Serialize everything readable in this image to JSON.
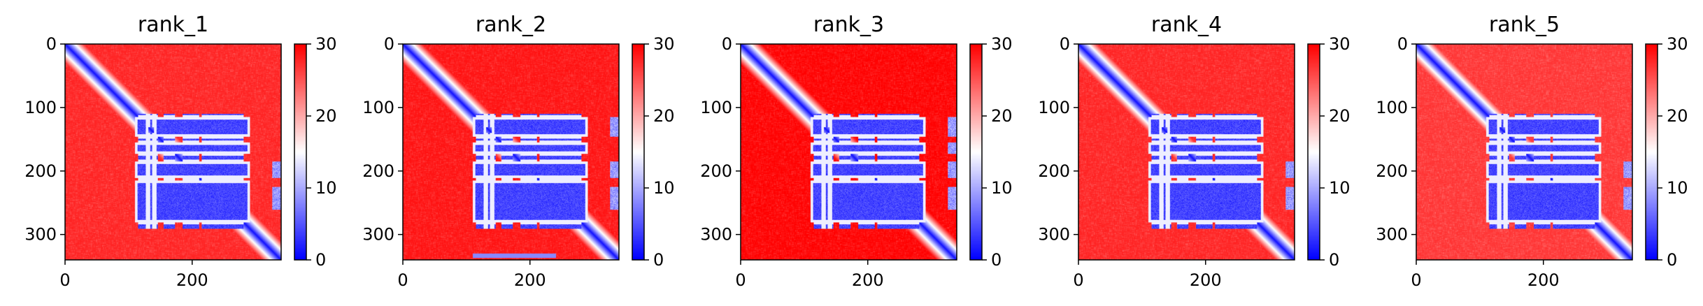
{
  "figure": {
    "colormap": [
      "#0000ff",
      "#ffffff",
      "#ff0000"
    ],
    "frame_color": "#000000"
  },
  "chart_data": [
    {
      "type": "heatmap",
      "title": "rank_1",
      "n": 340,
      "xlim": [
        0,
        340
      ],
      "ylim": [
        340,
        0
      ],
      "xticks": [
        0,
        200
      ],
      "yticks": [
        0,
        100,
        200,
        300
      ],
      "colorbar": {
        "min": 0,
        "max": 30,
        "ticks": [
          0,
          10,
          20,
          30
        ]
      },
      "structure": {
        "diagonal_band": true,
        "block_rows": [
          [
            115,
            145
          ],
          [
            155,
            172
          ],
          [
            185,
            210
          ],
          [
            215,
            280
          ]
        ],
        "block_cols": [
          [
            110,
            130
          ],
          [
            140,
            290
          ]
        ],
        "edge_feature_rows": [
          [
            185,
            210
          ],
          [
            225,
            260
          ]
        ],
        "bottom_strip": null,
        "background_level": 28
      }
    },
    {
      "type": "heatmap",
      "title": "rank_2",
      "n": 340,
      "xlim": [
        0,
        340
      ],
      "ylim": [
        340,
        0
      ],
      "xticks": [
        0,
        200
      ],
      "yticks": [
        0,
        100,
        200,
        300
      ],
      "colorbar": {
        "min": 0,
        "max": 30,
        "ticks": [
          0,
          10,
          20,
          30
        ]
      },
      "structure": {
        "diagonal_band": true,
        "block_rows": [
          [
            115,
            145
          ],
          [
            155,
            172
          ],
          [
            185,
            210
          ],
          [
            215,
            280
          ]
        ],
        "block_cols": [
          [
            110,
            130
          ],
          [
            140,
            290
          ]
        ],
        "edge_feature_rows": [
          [
            115,
            145
          ],
          [
            185,
            210
          ],
          [
            225,
            260
          ]
        ],
        "bottom_strip": [
          [
            330,
            336
          ],
          [
            110,
            240
          ]
        ],
        "background_level": 29
      }
    },
    {
      "type": "heatmap",
      "title": "rank_3",
      "n": 340,
      "xlim": [
        0,
        340
      ],
      "ylim": [
        340,
        0
      ],
      "xticks": [
        0,
        200
      ],
      "yticks": [
        0,
        100,
        200,
        300
      ],
      "colorbar": {
        "min": 0,
        "max": 30,
        "ticks": [
          0,
          10,
          20,
          30
        ]
      },
      "structure": {
        "diagonal_band": true,
        "block_rows": [
          [
            115,
            145
          ],
          [
            155,
            172
          ],
          [
            185,
            210
          ],
          [
            215,
            280
          ]
        ],
        "block_cols": [
          [
            110,
            130
          ],
          [
            140,
            290
          ]
        ],
        "edge_feature_rows": [
          [
            115,
            145
          ],
          [
            155,
            172
          ],
          [
            185,
            210
          ],
          [
            225,
            260
          ]
        ],
        "bottom_strip": null,
        "background_level": 30
      }
    },
    {
      "type": "heatmap",
      "title": "rank_4",
      "n": 340,
      "xlim": [
        0,
        340
      ],
      "ylim": [
        340,
        0
      ],
      "xticks": [
        0,
        200
      ],
      "yticks": [
        0,
        100,
        200,
        300
      ],
      "colorbar": {
        "min": 0,
        "max": 30,
        "ticks": [
          0,
          10,
          20,
          30
        ]
      },
      "structure": {
        "diagonal_band": true,
        "block_rows": [
          [
            115,
            145
          ],
          [
            155,
            172
          ],
          [
            185,
            210
          ],
          [
            215,
            280
          ]
        ],
        "block_cols": [
          [
            110,
            130
          ],
          [
            140,
            290
          ]
        ],
        "edge_feature_rows": [
          [
            185,
            210
          ],
          [
            225,
            260
          ]
        ],
        "bottom_strip": null,
        "background_level": 28
      }
    },
    {
      "type": "heatmap",
      "title": "rank_5",
      "n": 340,
      "xlim": [
        0,
        340
      ],
      "ylim": [
        340,
        0
      ],
      "xticks": [
        0,
        200
      ],
      "yticks": [
        0,
        100,
        200,
        300
      ],
      "colorbar": {
        "min": 0,
        "max": 30,
        "ticks": [
          0,
          10,
          20,
          30
        ]
      },
      "structure": {
        "diagonal_band": true,
        "block_rows": [
          [
            115,
            145
          ],
          [
            155,
            172
          ],
          [
            185,
            210
          ],
          [
            215,
            280
          ]
        ],
        "block_cols": [
          [
            110,
            130
          ],
          [
            140,
            290
          ]
        ],
        "edge_feature_rows": [
          [
            185,
            210
          ],
          [
            225,
            260
          ]
        ],
        "bottom_strip": null,
        "background_level": 27
      }
    }
  ]
}
